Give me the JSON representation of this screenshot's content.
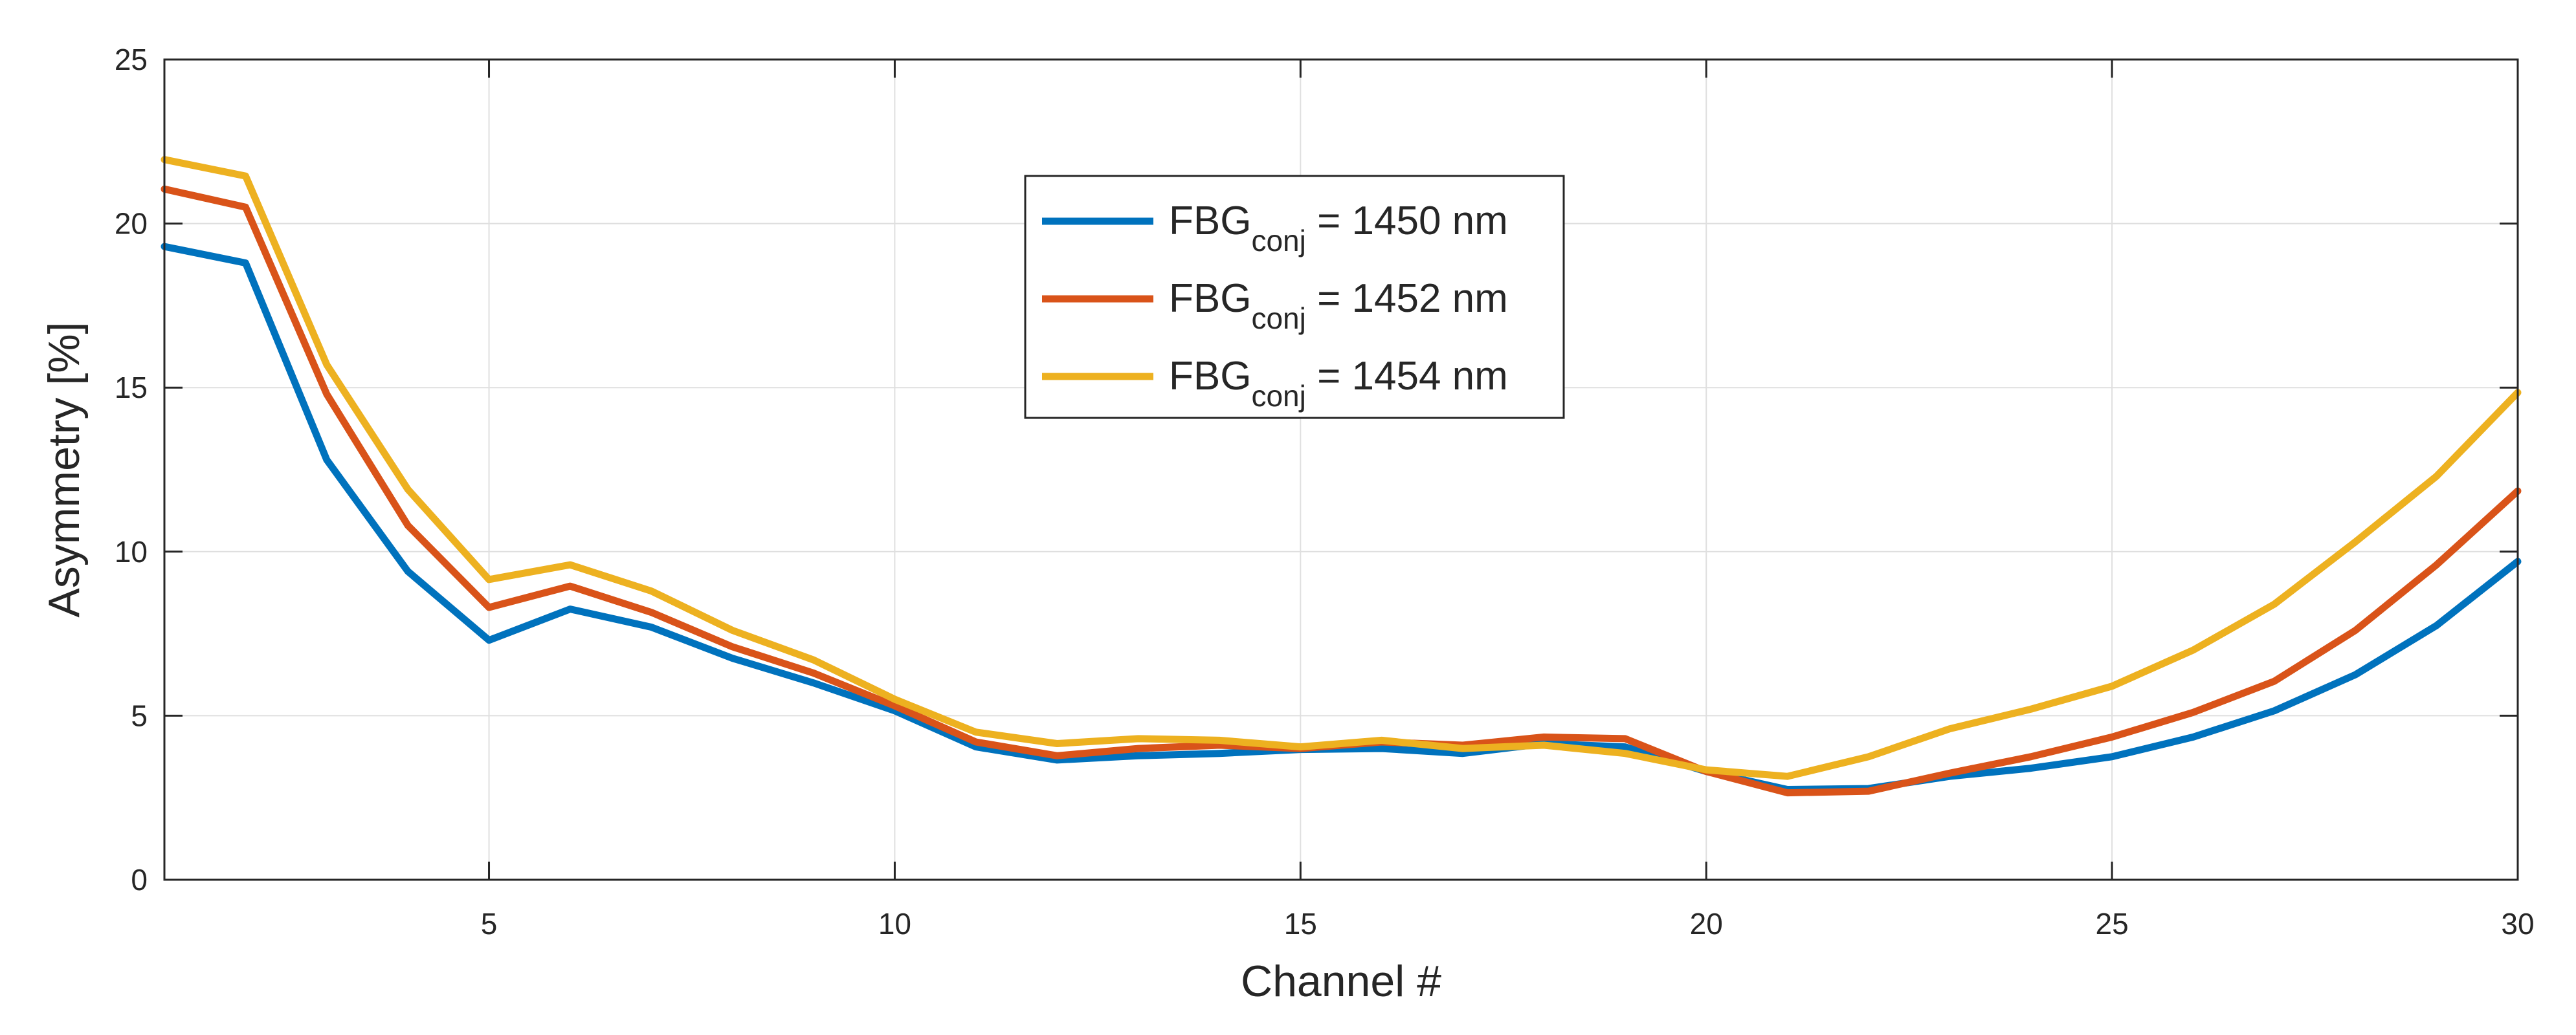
{
  "chart_data": {
    "type": "line",
    "title": "",
    "xlabel": "Channel #",
    "ylabel": "Asymmetry [%]",
    "xlim": [
      1,
      30
    ],
    "ylim": [
      0,
      25
    ],
    "xticks": [
      5,
      10,
      15,
      20,
      25,
      30
    ],
    "yticks": [
      0,
      5,
      10,
      15,
      20,
      25
    ],
    "grid": true,
    "legend_position": "top-center",
    "x": [
      1,
      2,
      3,
      4,
      5,
      6,
      7,
      8,
      9,
      10,
      11,
      12,
      13,
      14,
      15,
      16,
      17,
      18,
      19,
      20,
      21,
      22,
      23,
      24,
      25,
      26,
      27,
      28,
      29,
      30
    ],
    "series": [
      {
        "name_main": "FBG",
        "name_sub": "conj",
        "name_rest": " = 1450 nm",
        "color": "#0072BD",
        "values": [
          19.3,
          18.8,
          12.8,
          9.4,
          7.3,
          8.25,
          7.7,
          6.75,
          6.0,
          5.15,
          4.05,
          3.65,
          3.78,
          3.85,
          3.97,
          4.0,
          3.85,
          4.15,
          4.05,
          3.3,
          2.75,
          2.78,
          3.15,
          3.4,
          3.75,
          4.35,
          5.15,
          6.25,
          7.75,
          9.7
        ]
      },
      {
        "name_main": "FBG",
        "name_sub": "conj",
        "name_rest": " = 1452 nm",
        "color": "#D95319",
        "values": [
          21.05,
          20.5,
          14.8,
          10.8,
          8.3,
          8.95,
          8.15,
          7.1,
          6.3,
          5.3,
          4.2,
          3.78,
          4.0,
          4.1,
          4.0,
          4.2,
          4.1,
          4.35,
          4.3,
          3.3,
          2.65,
          2.7,
          3.25,
          3.75,
          4.35,
          5.1,
          6.05,
          7.6,
          9.6,
          11.85
        ]
      },
      {
        "name_main": "FBG",
        "name_sub": "conj",
        "name_rest": " = 1454 nm",
        "color": "#EDB120",
        "values": [
          21.95,
          21.45,
          15.7,
          11.9,
          9.15,
          9.6,
          8.8,
          7.6,
          6.7,
          5.5,
          4.5,
          4.15,
          4.3,
          4.25,
          4.05,
          4.25,
          4.0,
          4.1,
          3.85,
          3.35,
          3.15,
          3.75,
          4.6,
          5.2,
          5.9,
          7.0,
          8.4,
          10.3,
          12.3,
          14.85
        ]
      }
    ]
  }
}
